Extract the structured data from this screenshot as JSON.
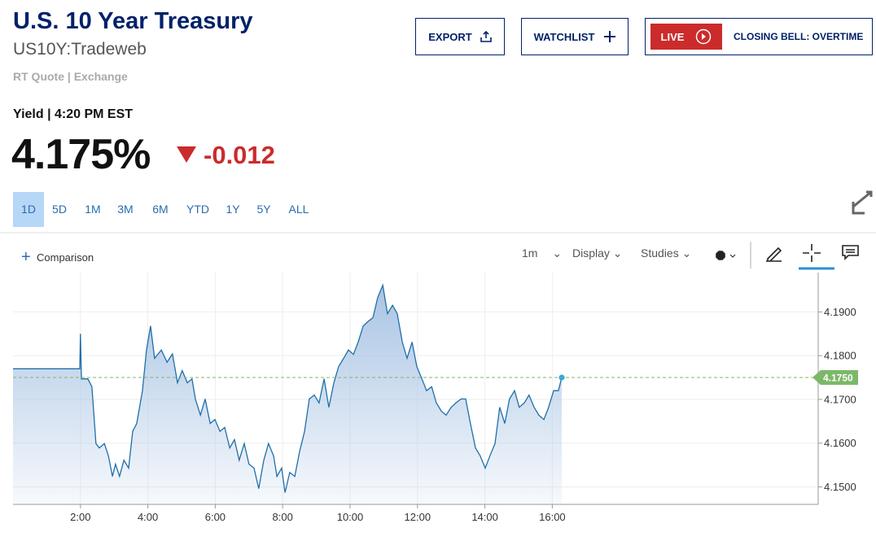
{
  "header": {
    "title": "U.S. 10 Year Treasury",
    "symbol": "US10Y:Tradeweb",
    "source": "RT Quote | Exchange"
  },
  "buttons": [
    "EXPORT",
    "WATCHLIST"
  ],
  "live": {
    "badge": "LIVE",
    "show": "CLOSING BELL: OVERTIME"
  },
  "quote": {
    "label": "Yield | 4:20 PM EST",
    "price": "4.175%",
    "change": "-0.012"
  },
  "ranges": [
    "1D",
    "5D",
    "1M",
    "3M",
    "6M",
    "YTD",
    "1Y",
    "5Y",
    "ALL"
  ],
  "toolbar": {
    "comparison": "Comparison",
    "interval": "1m",
    "display": "Display",
    "studies": "Studies"
  },
  "chart_data": {
    "type": "line",
    "x": [
      0,
      1.98,
      2.0,
      2.03,
      2.22,
      2.34,
      2.46,
      2.56,
      2.71,
      2.83,
      2.95,
      3.04,
      3.16,
      3.29,
      3.43,
      3.55,
      3.67,
      3.84,
      3.96,
      4.08,
      4.2,
      4.4,
      4.57,
      4.73,
      4.88,
      5.02,
      5.17,
      5.31,
      5.41,
      5.56,
      5.7,
      5.85,
      5.99,
      6.14,
      6.28,
      6.43,
      6.57,
      6.71,
      6.86,
      7.0,
      7.15,
      7.29,
      7.44,
      7.58,
      7.73,
      7.83,
      7.97,
      8.07,
      8.21,
      8.36,
      8.5,
      8.65,
      8.79,
      8.94,
      9.08,
      9.23,
      9.37,
      9.52,
      9.66,
      9.81,
      9.95,
      10.1,
      10.24,
      10.39,
      10.53,
      10.68,
      10.82,
      10.97,
      11.11,
      11.26,
      11.4,
      11.55,
      11.69,
      11.84,
      11.98,
      12.13,
      12.27,
      12.42,
      12.56,
      12.71,
      12.85,
      13.0,
      13.14,
      13.29,
      13.43,
      13.57,
      13.72,
      13.86,
      14.01,
      14.15,
      14.3,
      14.44,
      14.59,
      14.73,
      14.88,
      15.02,
      15.17,
      15.31,
      15.46,
      15.6,
      15.75,
      15.89,
      16.04,
      16.18,
      16.28
    ],
    "series": [
      {
        "color": "#1f6fa8",
        "values": [
          4.177,
          4.177,
          4.185,
          4.1747,
          4.1747,
          4.1729,
          4.1599,
          4.1589,
          4.1599,
          4.1571,
          4.1524,
          4.1552,
          4.1524,
          4.1561,
          4.1543,
          4.1627,
          4.1645,
          4.172,
          4.1813,
          4.1868,
          4.1794,
          4.1813,
          4.1785,
          4.1804,
          4.1738,
          4.1766,
          4.1738,
          4.1747,
          4.1701,
          4.1664,
          4.1701,
          4.1645,
          4.1654,
          4.1627,
          4.1636,
          4.1589,
          4.1608,
          4.1561,
          4.1599,
          4.1552,
          4.1543,
          4.1496,
          4.1561,
          4.1599,
          4.1571,
          4.1524,
          4.1543,
          4.1487,
          4.1533,
          4.1524,
          4.158,
          4.1627,
          4.1701,
          4.171,
          4.1692,
          4.1747,
          4.1682,
          4.1738,
          4.1775,
          4.1794,
          4.1813,
          4.1803,
          4.1831,
          4.1868,
          4.1878,
          4.1887,
          4.1933,
          4.1961,
          4.1896,
          4.1915,
          4.1896,
          4.1831,
          4.1794,
          4.1831,
          4.1775,
          4.1747,
          4.172,
          4.1729,
          4.1692,
          4.1673,
          4.1664,
          4.1682,
          4.1692,
          4.1701,
          4.1701,
          4.1645,
          4.1589,
          4.1571,
          4.1543,
          4.1571,
          4.1599,
          4.1682,
          4.1645,
          4.1701,
          4.172,
          4.1682,
          4.1692,
          4.171,
          4.1682,
          4.1664,
          4.1654,
          4.1682,
          4.172,
          4.172,
          4.175
        ]
      }
    ],
    "xlim": [
      0,
      24
    ],
    "xticks": [
      {
        "value": 2,
        "label": "2:00"
      },
      {
        "value": 4,
        "label": "4:00"
      },
      {
        "value": 6,
        "label": "6:00"
      },
      {
        "value": 8,
        "label": "8:00"
      },
      {
        "value": 10,
        "label": "10:00"
      },
      {
        "value": 12,
        "label": "12:00"
      },
      {
        "value": 14,
        "label": "14:00"
      },
      {
        "value": 16,
        "label": "16:00"
      }
    ],
    "ylim": [
      4.146,
      4.199
    ],
    "yticks": [
      {
        "value": 4.15,
        "label": "4.1500"
      },
      {
        "value": 4.16,
        "label": "4.1600"
      },
      {
        "value": 4.17,
        "label": "4.1700"
      },
      {
        "value": 4.18,
        "label": "4.1800"
      },
      {
        "value": 4.19,
        "label": "4.1900"
      }
    ],
    "reference": {
      "value": 4.175,
      "label": "4.1750",
      "color": "#7cb86a"
    },
    "grid": true
  }
}
